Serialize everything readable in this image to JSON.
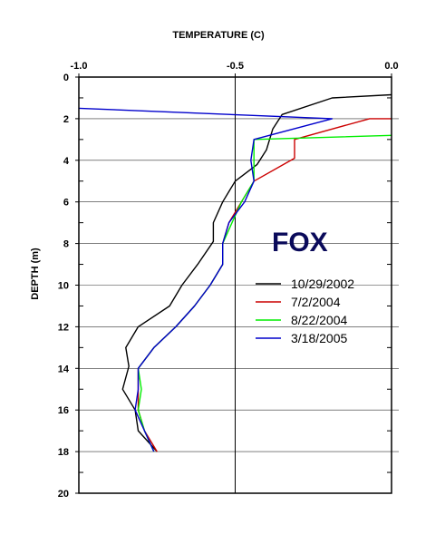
{
  "chart_data": {
    "type": "line",
    "title": "",
    "site_label": "FOX",
    "xlabel": "TEMPERATURE (C)",
    "ylabel": "DEPTH (m)",
    "x_axis_position": "top",
    "y_inverted": true,
    "xlim": [
      -1.0,
      0.0
    ],
    "ylim": [
      0,
      20
    ],
    "x_ticks": [
      -1.0,
      -0.5,
      0.0
    ],
    "x_tick_labels": [
      "-1.0",
      "-0.5",
      "0.0"
    ],
    "y_ticks": [
      0,
      2,
      4,
      6,
      8,
      10,
      12,
      14,
      16,
      18,
      20
    ],
    "y_tick_labels": [
      "0",
      "2",
      "4",
      "6",
      "8",
      "10",
      "12",
      "14",
      "16",
      "18",
      "20"
    ],
    "grid": "horizontal lines at even depths",
    "reference_line_x": -0.5,
    "legend_position": "center-right",
    "series": [
      {
        "name": "10/29/2002",
        "color": "#000000",
        "points": [
          [
            0.0,
            0.85
          ],
          [
            -0.19,
            1.0
          ],
          [
            -0.35,
            1.8
          ],
          [
            -0.38,
            2.5
          ],
          [
            -0.4,
            3.5
          ],
          [
            -0.43,
            4.2
          ],
          [
            -0.5,
            5.0
          ],
          [
            -0.54,
            6.0
          ],
          [
            -0.57,
            7.0
          ],
          [
            -0.57,
            7.9
          ],
          [
            -0.62,
            9.0
          ],
          [
            -0.67,
            10.0
          ],
          [
            -0.71,
            11.0
          ],
          [
            -0.81,
            12.0
          ],
          [
            -0.85,
            13.0
          ],
          [
            -0.84,
            13.9
          ],
          [
            -0.86,
            15.0
          ],
          [
            -0.82,
            16.0
          ],
          [
            -0.81,
            17.0
          ],
          [
            -0.75,
            18.0
          ]
        ]
      },
      {
        "name": "7/2/2004",
        "color": "#cc0000",
        "points": [
          [
            0.0,
            2.0
          ],
          [
            -0.07,
            2.0
          ],
          [
            -0.31,
            3.0
          ],
          [
            -0.31,
            3.9
          ],
          [
            -0.44,
            5.0
          ],
          [
            -0.48,
            6.0
          ],
          [
            -0.52,
            7.0
          ],
          [
            -0.54,
            8.0
          ],
          [
            -0.54,
            9.0
          ],
          [
            -0.58,
            10.0
          ],
          [
            -0.63,
            11.0
          ],
          [
            -0.69,
            12.0
          ],
          [
            -0.76,
            13.0
          ],
          [
            -0.81,
            14.0
          ],
          [
            -0.81,
            15.0
          ],
          [
            -0.81,
            16.0
          ],
          [
            -0.79,
            17.0
          ],
          [
            -0.75,
            18.0
          ]
        ]
      },
      {
        "name": "8/22/2004",
        "color": "#00ee00",
        "points": [
          [
            0.0,
            2.8
          ],
          [
            -0.44,
            3.0
          ],
          [
            -0.44,
            4.0
          ],
          [
            -0.44,
            5.0
          ],
          [
            -0.48,
            6.0
          ],
          [
            -0.51,
            7.0
          ],
          [
            -0.54,
            8.0
          ],
          [
            -0.54,
            9.0
          ],
          [
            -0.58,
            10.0
          ],
          [
            -0.63,
            11.0
          ],
          [
            -0.69,
            12.0
          ],
          [
            -0.76,
            13.0
          ],
          [
            -0.81,
            14.0
          ],
          [
            -0.8,
            15.0
          ],
          [
            -0.81,
            16.0
          ],
          [
            -0.79,
            17.0
          ],
          [
            -0.76,
            18.0
          ]
        ]
      },
      {
        "name": "3/18/2005",
        "color": "#0000cc",
        "points": [
          [
            -1.0,
            1.5
          ],
          [
            -0.19,
            2.0
          ],
          [
            -0.44,
            3.0
          ],
          [
            -0.45,
            4.0
          ],
          [
            -0.44,
            5.0
          ],
          [
            -0.47,
            6.0
          ],
          [
            -0.52,
            7.0
          ],
          [
            -0.54,
            8.0
          ],
          [
            -0.54,
            9.0
          ],
          [
            -0.58,
            10.0
          ],
          [
            -0.63,
            11.0
          ],
          [
            -0.69,
            12.0
          ],
          [
            -0.76,
            13.0
          ],
          [
            -0.81,
            14.0
          ],
          [
            -0.81,
            15.0
          ],
          [
            -0.82,
            16.0
          ],
          [
            -0.79,
            17.0
          ],
          [
            -0.76,
            18.0
          ]
        ]
      }
    ]
  }
}
